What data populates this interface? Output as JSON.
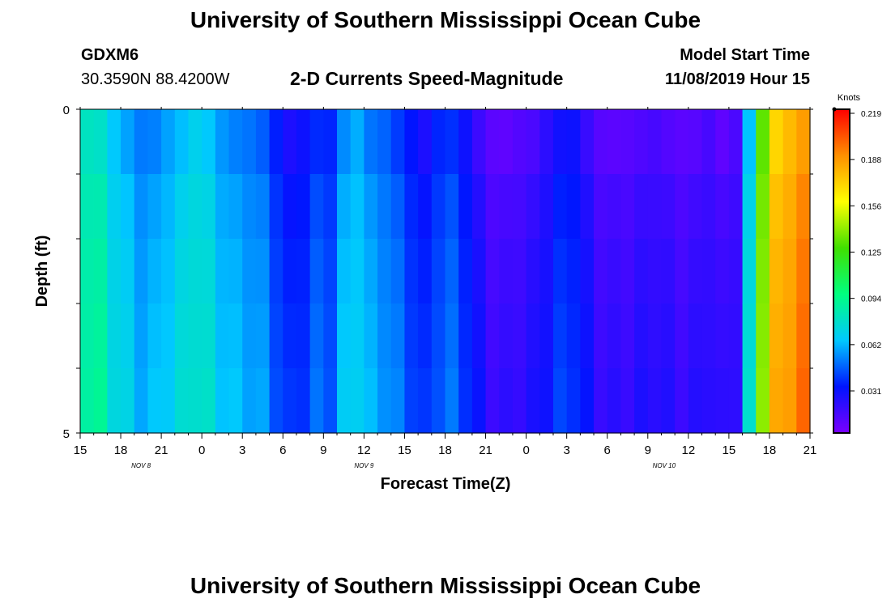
{
  "header": {
    "title": "University of Southern Mississippi Ocean Cube",
    "station_id": "GDXM6",
    "location": "30.3590N 88.4200W",
    "subtitle": "2-D Currents Speed-Magnitude",
    "model_start_label": "Model Start Time",
    "model_start_value": "11/08/2019 Hour 15"
  },
  "footer": {
    "title": "University of Southern Mississippi Ocean Cube"
  },
  "chart_data": {
    "type": "heatmap",
    "title": "2-D Currents Speed-Magnitude",
    "xlabel": "Forecast Time(Z)",
    "ylabel": "Depth (ft)",
    "x_hours": [
      0,
      54
    ],
    "x_tick_labels": [
      "15",
      "18",
      "21",
      "0",
      "3",
      "6",
      "9",
      "12",
      "15",
      "18",
      "21",
      "0",
      "3",
      "6",
      "9",
      "12",
      "15",
      "18",
      "21"
    ],
    "date_labels": [
      {
        "label": "NOV  8",
        "hour": 4.5
      },
      {
        "label": "NOV  9",
        "hour": 21
      },
      {
        "label": "NOV  10",
        "hour": 43.2
      }
    ],
    "y_tick_labels": [
      "0",
      "5"
    ],
    "ylim": [
      0,
      5
    ],
    "colorbar": {
      "title": "Knots",
      "tick_labels": [
        "0.219",
        "0.188",
        "0.156",
        "0.125",
        "0.094",
        "0.062",
        "0.031"
      ],
      "range": [
        0,
        0.219
      ],
      "colors": [
        "#7a00ff",
        "#0014ff",
        "#00c8ff",
        "#00ff80",
        "#40e000",
        "#ffff00",
        "#ff9000",
        "#ff0000"
      ]
    },
    "depth_levels": [
      0,
      1,
      2,
      3,
      4
    ],
    "hourly_speeds_knots": [
      0.078,
      0.076,
      0.063,
      0.056,
      0.049,
      0.05,
      0.056,
      0.061,
      0.067,
      0.063,
      0.054,
      0.05,
      0.048,
      0.044,
      0.033,
      0.024,
      0.028,
      0.035,
      0.034,
      0.052,
      0.058,
      0.048,
      0.045,
      0.038,
      0.031,
      0.024,
      0.034,
      0.036,
      0.028,
      0.016,
      0.008,
      0.007,
      0.01,
      0.012,
      0.02,
      0.027,
      0.028,
      0.017,
      0.009,
      0.008,
      0.009,
      0.011,
      0.013,
      0.01,
      0.008,
      0.009,
      0.013,
      0.007,
      0.012,
      0.062,
      0.13,
      0.168,
      0.176,
      0.184
    ],
    "depth_offsets_knots": [
      0.0,
      0.006,
      0.009,
      0.011,
      0.013
    ]
  }
}
